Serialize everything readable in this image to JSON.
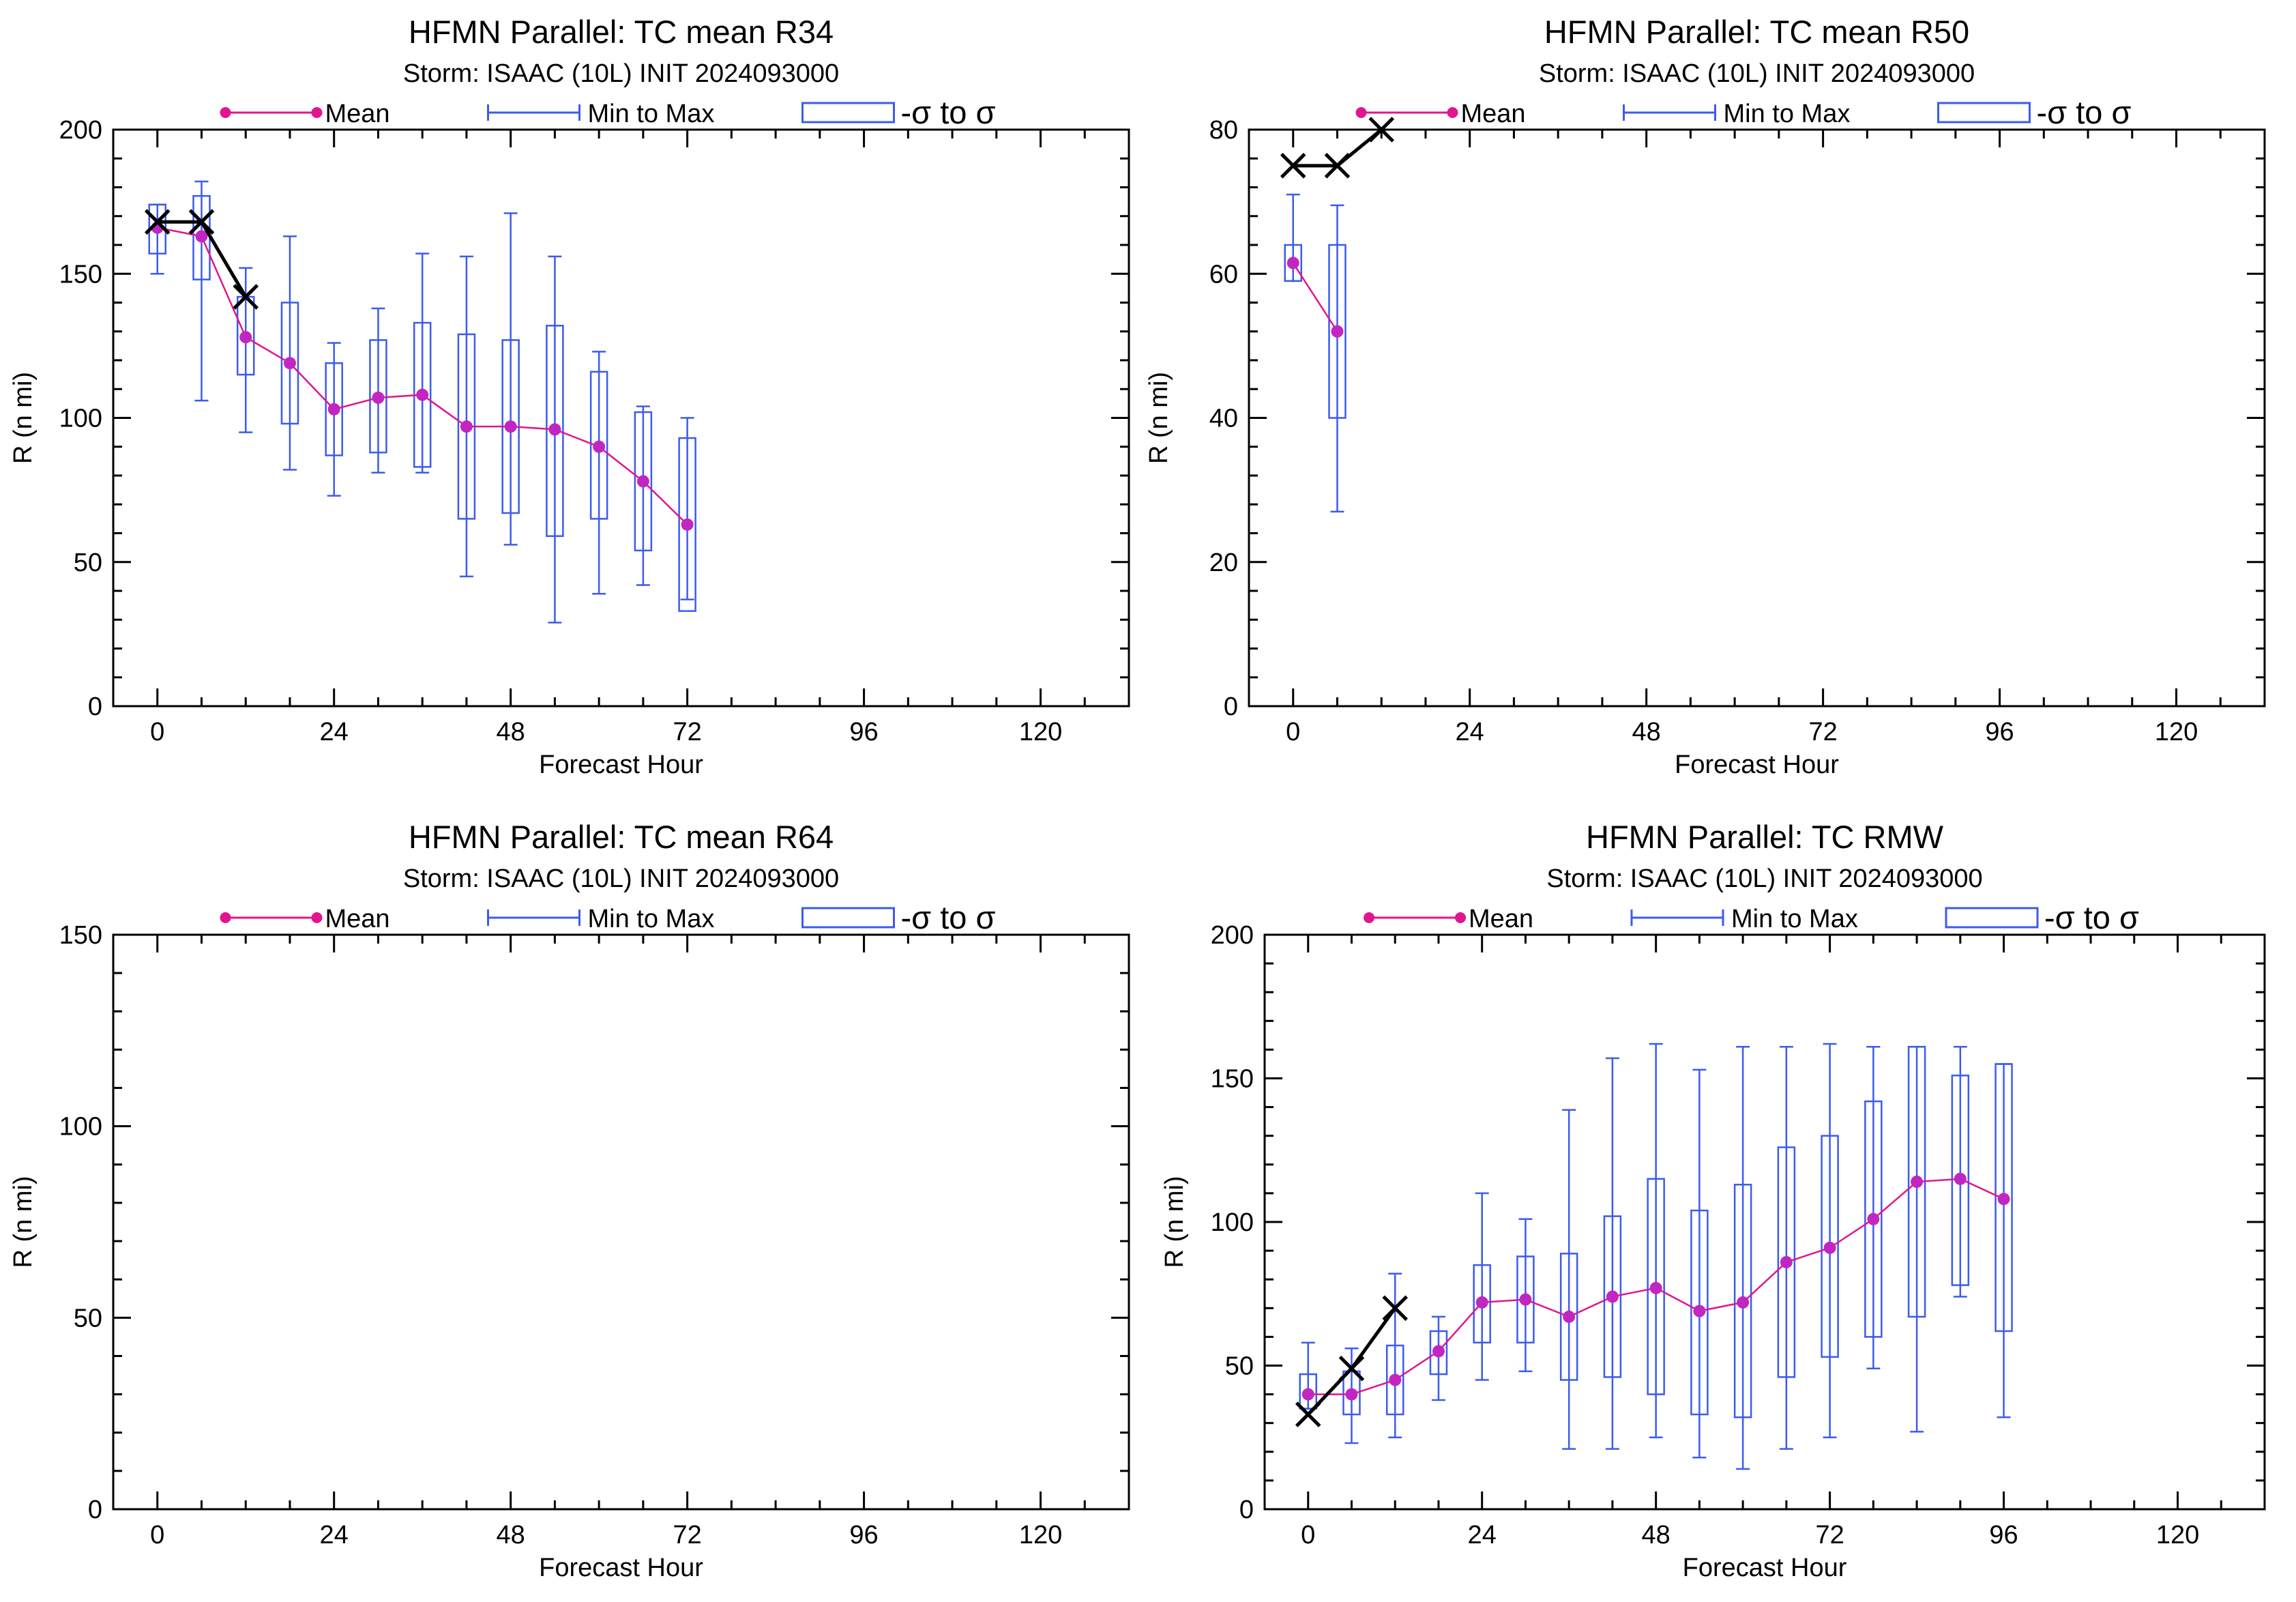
{
  "legend": {
    "mean": "Mean",
    "minmax": "Min to Max",
    "sigma": "-σ to σ"
  },
  "colors": {
    "mean": "#e0168f",
    "mean_marker": "#c226c2",
    "box": "#3b5bef",
    "obs": "#000000"
  },
  "chart_data": [
    {
      "type": "box",
      "title": "HFMN Parallel: TC mean R34",
      "subtitle": "Storm: ISAAC (10L) INIT 2024093000",
      "xlabel": "Forecast Hour",
      "ylabel": "R (n mi)",
      "xlim": [
        -6,
        132
      ],
      "ylim": [
        0,
        200
      ],
      "xticks": [
        0,
        24,
        48,
        72,
        96,
        120
      ],
      "yticks": [
        0,
        50,
        100,
        150,
        200
      ],
      "mean": [
        [
          0,
          166
        ],
        [
          6,
          163
        ],
        [
          12,
          128
        ],
        [
          18,
          119
        ],
        [
          24,
          103
        ],
        [
          30,
          107
        ],
        [
          36,
          108
        ],
        [
          42,
          97
        ],
        [
          48,
          97
        ],
        [
          54,
          96
        ],
        [
          60,
          90
        ],
        [
          66,
          78
        ],
        [
          72,
          63
        ]
      ],
      "boxes": [
        {
          "x": 0,
          "min": 150,
          "max": 174,
          "lo": 157,
          "hi": 174
        },
        {
          "x": 6,
          "min": 106,
          "max": 182,
          "lo": 148,
          "hi": 177
        },
        {
          "x": 12,
          "min": 95,
          "max": 152,
          "lo": 115,
          "hi": 142
        },
        {
          "x": 18,
          "min": 82,
          "max": 163,
          "lo": 98,
          "hi": 140
        },
        {
          "x": 24,
          "min": 73,
          "max": 126,
          "lo": 87,
          "hi": 119
        },
        {
          "x": 30,
          "min": 81,
          "max": 138,
          "lo": 88,
          "hi": 127
        },
        {
          "x": 36,
          "min": 81,
          "max": 157,
          "lo": 83,
          "hi": 133
        },
        {
          "x": 42,
          "min": 45,
          "max": 156,
          "lo": 65,
          "hi": 129
        },
        {
          "x": 48,
          "min": 56,
          "max": 171,
          "lo": 67,
          "hi": 127
        },
        {
          "x": 54,
          "min": 29,
          "max": 156,
          "lo": 59,
          "hi": 132
        },
        {
          "x": 60,
          "min": 39,
          "max": 123,
          "lo": 65,
          "hi": 116
        },
        {
          "x": 66,
          "min": 42,
          "max": 104,
          "lo": 54,
          "hi": 102
        },
        {
          "x": 72,
          "min": 37,
          "max": 100,
          "lo": 33,
          "hi": 93
        }
      ],
      "obs": [
        [
          0,
          168
        ],
        [
          6,
          168
        ],
        [
          12,
          142
        ]
      ]
    },
    {
      "type": "box",
      "title": "HFMN Parallel: TC mean R50",
      "subtitle": "Storm: ISAAC (10L) INIT 2024093000",
      "xlabel": "Forecast Hour",
      "ylabel": "R (n mi)",
      "xlim": [
        -6,
        132
      ],
      "ylim": [
        0,
        80
      ],
      "xticks": [
        0,
        24,
        48,
        72,
        96,
        120
      ],
      "yticks": [
        0,
        20,
        40,
        60,
        80
      ],
      "mean": [
        [
          0,
          61.5
        ],
        [
          6,
          52
        ]
      ],
      "boxes": [
        {
          "x": 0,
          "min": 59,
          "max": 71,
          "lo": 59,
          "hi": 64
        },
        {
          "x": 6,
          "min": 27,
          "max": 69.5,
          "lo": 40,
          "hi": 64
        }
      ],
      "obs": [
        [
          0,
          75
        ],
        [
          6,
          75
        ],
        [
          12,
          80
        ]
      ]
    },
    {
      "type": "box",
      "title": "HFMN Parallel: TC mean R64",
      "subtitle": "Storm: ISAAC (10L) INIT 2024093000",
      "xlabel": "Forecast Hour",
      "ylabel": "R (n mi)",
      "xlim": [
        -6,
        132
      ],
      "ylim": [
        0,
        150
      ],
      "xticks": [
        0,
        24,
        48,
        72,
        96,
        120
      ],
      "yticks": [
        0,
        50,
        100,
        150
      ],
      "mean": [],
      "boxes": [],
      "obs": []
    },
    {
      "type": "box",
      "title": "HFMN Parallel: TC RMW",
      "subtitle": "Storm: ISAAC (10L) INIT 2024093000",
      "xlabel": "Forecast Hour",
      "ylabel": "R (n mi)",
      "xlim": [
        -6,
        132
      ],
      "ylim": [
        0,
        200
      ],
      "xticks": [
        0,
        24,
        48,
        72,
        96,
        120
      ],
      "yticks": [
        0,
        50,
        100,
        150,
        200
      ],
      "mean": [
        [
          0,
          40
        ],
        [
          6,
          40
        ],
        [
          12,
          45
        ],
        [
          18,
          55
        ],
        [
          24,
          72
        ],
        [
          30,
          73
        ],
        [
          36,
          67
        ],
        [
          42,
          74
        ],
        [
          48,
          77
        ],
        [
          54,
          69
        ],
        [
          60,
          72
        ],
        [
          66,
          86
        ],
        [
          72,
          91
        ],
        [
          78,
          101
        ],
        [
          84,
          114
        ],
        [
          90,
          115
        ],
        [
          96,
          108
        ]
      ],
      "boxes": [
        {
          "x": 0,
          "min": 35,
          "max": 58,
          "lo": 35,
          "hi": 47
        },
        {
          "x": 6,
          "min": 23,
          "max": 56,
          "lo": 33,
          "hi": 48
        },
        {
          "x": 12,
          "min": 25,
          "max": 82,
          "lo": 33,
          "hi": 57
        },
        {
          "x": 18,
          "min": 38,
          "max": 67,
          "lo": 47,
          "hi": 62
        },
        {
          "x": 24,
          "min": 45,
          "max": 110,
          "lo": 58,
          "hi": 85
        },
        {
          "x": 30,
          "min": 48,
          "max": 101,
          "lo": 58,
          "hi": 88
        },
        {
          "x": 36,
          "min": 21,
          "max": 139,
          "lo": 45,
          "hi": 89
        },
        {
          "x": 42,
          "min": 21,
          "max": 157,
          "lo": 46,
          "hi": 102
        },
        {
          "x": 48,
          "min": 25,
          "max": 162,
          "lo": 40,
          "hi": 115
        },
        {
          "x": 54,
          "min": 18,
          "max": 153,
          "lo": 33,
          "hi": 104
        },
        {
          "x": 60,
          "min": 14,
          "max": 161,
          "lo": 32,
          "hi": 113
        },
        {
          "x": 66,
          "min": 21,
          "max": 161,
          "lo": 46,
          "hi": 126
        },
        {
          "x": 72,
          "min": 25,
          "max": 162,
          "lo": 53,
          "hi": 130
        },
        {
          "x": 78,
          "min": 49,
          "max": 161,
          "lo": 60,
          "hi": 142
        },
        {
          "x": 84,
          "min": 27,
          "max": 161,
          "lo": 67,
          "hi": 161
        },
        {
          "x": 90,
          "min": 74,
          "max": 161,
          "lo": 78,
          "hi": 151
        },
        {
          "x": 96,
          "min": 32,
          "max": 155,
          "lo": 62,
          "hi": 155
        }
      ],
      "obs": [
        [
          0,
          33
        ],
        [
          6,
          49
        ],
        [
          12,
          70
        ]
      ]
    }
  ]
}
